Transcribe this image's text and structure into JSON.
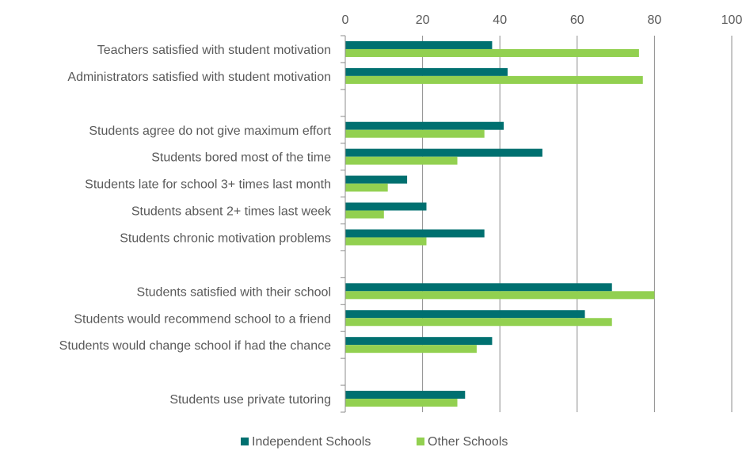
{
  "chart_data": {
    "type": "bar",
    "orientation": "horizontal",
    "categories": [
      "Teachers satisfied with student motivation",
      "Administrators satisfied with student motivation",
      "",
      "Students agree do not give maximum effort",
      "Students bored most of the time",
      "Students late for school 3+ times last month",
      "Students absent 2+ times last week",
      "Students chronic motivation problems",
      "",
      "Students satisfied with their school",
      "Students would recommend school to a friend",
      "Students would change school if had the chance",
      "",
      "Students use private tutoring"
    ],
    "series": [
      {
        "name": "Independent Schools",
        "color": "#007070",
        "values": [
          38,
          42,
          null,
          41,
          51,
          16,
          21,
          36,
          null,
          69,
          62,
          38,
          null,
          31
        ]
      },
      {
        "name": "Other Schools",
        "color": "#92d050",
        "values": [
          76,
          77,
          null,
          36,
          29,
          11,
          10,
          21,
          null,
          80,
          69,
          34,
          null,
          29
        ]
      }
    ],
    "xlim": [
      0,
      100
    ],
    "xticks": [
      0,
      20,
      40,
      60,
      80,
      100
    ],
    "x_axis_position": "top",
    "gridlines": "vertical",
    "legend_position": "bottom-center",
    "title": "",
    "xlabel": "",
    "ylabel": ""
  }
}
